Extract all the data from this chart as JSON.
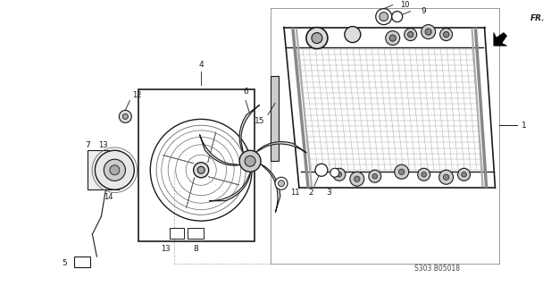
{
  "background_color": "#ffffff",
  "fig_width": 6.17,
  "fig_height": 3.2,
  "dpi": 100,
  "diagram_code": "S303 B05018",
  "color_main": "#1a1a1a",
  "color_light": "#666666",
  "color_grid": "#999999"
}
